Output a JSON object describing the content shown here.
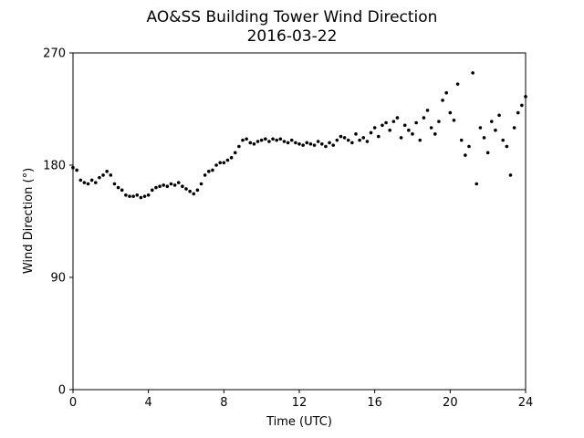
{
  "chart_data": {
    "type": "scatter",
    "title": "AO&SS Building Tower Wind Direction",
    "subtitle": "2016-03-22",
    "x_label": "Time (UTC)",
    "y_label": "Wind Direction (°)",
    "color": "#000000",
    "xlim": [
      0,
      24
    ],
    "xticks": [
      0,
      4,
      8,
      12,
      16,
      20,
      24
    ],
    "ylim": [
      0,
      270
    ],
    "yticks": [
      0,
      90,
      180,
      270
    ],
    "grid": false,
    "x": [
      0,
      0.2,
      0.4,
      0.6,
      0.8,
      1,
      1.2,
      1.4,
      1.6,
      1.8,
      2,
      2.2,
      2.4,
      2.6,
      2.8,
      3,
      3.2,
      3.4,
      3.6,
      3.8,
      4,
      4.2,
      4.4,
      4.6,
      4.8,
      5,
      5.2,
      5.4,
      5.6,
      5.8,
      6,
      6.2,
      6.4,
      6.6,
      6.8,
      7,
      7.2,
      7.4,
      7.6,
      7.8,
      8,
      8.2,
      8.4,
      8.6,
      8.8,
      9,
      9.2,
      9.4,
      9.6,
      9.8,
      10,
      10.2,
      10.4,
      10.6,
      10.8,
      11,
      11.2,
      11.4,
      11.6,
      11.8,
      12,
      12.2,
      12.4,
      12.6,
      12.8,
      13,
      13.2,
      13.4,
      13.6,
      13.8,
      14,
      14.2,
      14.4,
      14.6,
      14.8,
      15,
      15.2,
      15.4,
      15.6,
      15.8,
      16,
      16.2,
      16.4,
      16.6,
      16.8,
      17,
      17.2,
      17.4,
      17.6,
      17.8,
      18,
      18.2,
      18.4,
      18.6,
      18.8,
      19,
      19.2,
      19.4,
      19.6,
      19.8,
      20,
      20.2,
      20.4,
      20.6,
      20.8,
      21,
      21.2,
      21.4,
      21.6,
      21.8,
      22,
      22.2,
      22.4,
      22.6,
      22.8,
      23,
      23.2,
      23.4,
      23.6,
      23.8,
      24
    ],
    "values": [
      178,
      176,
      168,
      166,
      165,
      168,
      166,
      170,
      172,
      175,
      172,
      165,
      162,
      160,
      156,
      155,
      155,
      156,
      154,
      155,
      156,
      160,
      162,
      163,
      164,
      163,
      165,
      164,
      166,
      163,
      161,
      159,
      157,
      160,
      165,
      172,
      175,
      176,
      180,
      182,
      182,
      184,
      186,
      190,
      195,
      200,
      201,
      198,
      197,
      199,
      200,
      201,
      199,
      201,
      200,
      201,
      199,
      198,
      200,
      198,
      197,
      196,
      198,
      197,
      196,
      199,
      197,
      195,
      198,
      196,
      200,
      203,
      202,
      200,
      198,
      205,
      200,
      202,
      199,
      206,
      210,
      203,
      212,
      214,
      208,
      215,
      218,
      202,
      212,
      208,
      205,
      214,
      200,
      218,
      224,
      210,
      205,
      215,
      232,
      238,
      222,
      216,
      245,
      200,
      188,
      195,
      254,
      165,
      210,
      202,
      190,
      215,
      208,
      220,
      200,
      195,
      172,
      210,
      222,
      228,
      235
    ]
  }
}
